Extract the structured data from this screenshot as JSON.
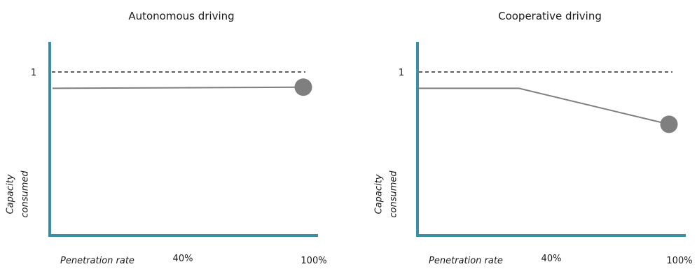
{
  "chart_data": [
    {
      "type": "line",
      "title": "Autonomous driving",
      "xlabel": "Penetration rate",
      "ylabel_lines": [
        "Capacity",
        "consumed"
      ],
      "x_ticks": [
        {
          "value": 40,
          "label": "40%"
        },
        {
          "value": 100,
          "label": "100%"
        }
      ],
      "y_ticks": [
        {
          "value": 1,
          "label": "1"
        }
      ],
      "xlim": [
        0,
        100
      ],
      "ylim": [
        0,
        1.2
      ],
      "reference_line": {
        "y": 1,
        "style": "dashed"
      },
      "series": [
        {
          "points": [
            [
              0,
              0.9
            ],
            [
              100,
              0.907
            ]
          ],
          "end_marker": true,
          "color": "#7f7f7f"
        }
      ],
      "axis_color": "#3a8fa3",
      "grid": false
    },
    {
      "type": "line",
      "title": "Cooperative driving",
      "xlabel": "Penetration rate",
      "ylabel_lines": [
        "Capacity",
        "consumed"
      ],
      "x_ticks": [
        {
          "value": 40,
          "label": "40%"
        },
        {
          "value": 100,
          "label": "100%"
        }
      ],
      "y_ticks": [
        {
          "value": 1,
          "label": "1"
        }
      ],
      "xlim": [
        0,
        100
      ],
      "ylim": [
        0,
        1.2
      ],
      "reference_line": {
        "y": 1,
        "style": "dashed"
      },
      "series": [
        {
          "points": [
            [
              0,
              0.9
            ],
            [
              40,
              0.9
            ],
            [
              100,
              0.68
            ]
          ],
          "end_marker": true,
          "color": "#7f7f7f"
        }
      ],
      "axis_color": "#3a8fa3",
      "grid": false
    }
  ]
}
